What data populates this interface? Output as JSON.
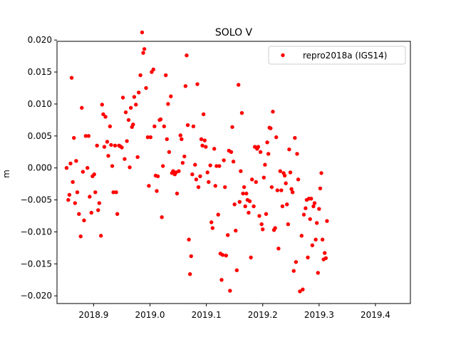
{
  "chart_data": {
    "type": "scatter",
    "title": "SOLO V",
    "xlabel": "",
    "ylabel": "m",
    "xlim": [
      2018.835,
      2019.462
    ],
    "ylim": [
      -0.0212,
      0.0198
    ],
    "xticks": [
      2018.9,
      2019.0,
      2019.1,
      2019.2,
      2019.3,
      2019.4
    ],
    "xtick_labels": [
      "2018.9",
      "2019.0",
      "2019.1",
      "2019.2",
      "2019.3",
      "2019.4"
    ],
    "yticks": [
      -0.02,
      -0.015,
      -0.01,
      -0.005,
      0.0,
      0.005,
      0.01,
      0.015,
      0.02
    ],
    "ytick_labels": [
      "−0.020",
      "−0.015",
      "−0.010",
      "−0.005",
      "0.000",
      "0.005",
      "0.010",
      "0.015",
      "0.020"
    ],
    "grid": false,
    "legend": {
      "position": "top-right"
    },
    "colors": {
      "marker": "#ff0000"
    },
    "series": [
      {
        "name": "repro2018a (IGS14)",
        "points": [
          [
            2018.852,
            0.0
          ],
          [
            2018.855,
            -0.005
          ],
          [
            2018.857,
            -0.0042
          ],
          [
            2018.859,
            0.0007
          ],
          [
            2018.861,
            0.0141
          ],
          [
            2018.863,
            -0.0022
          ],
          [
            2018.865,
            0.0047
          ],
          [
            2018.867,
            -0.0055
          ],
          [
            2018.869,
            0.0011
          ],
          [
            2018.871,
            -0.0038
          ],
          [
            2018.874,
            -0.0072
          ],
          [
            2018.877,
            -0.0107
          ],
          [
            2018.879,
            0.0094
          ],
          [
            2018.881,
            -0.0006
          ],
          [
            2018.883,
            -0.0082
          ],
          [
            2018.886,
            0.005
          ],
          [
            2018.889,
            0.0
          ],
          [
            2018.891,
            0.005
          ],
          [
            2018.893,
            -0.0045
          ],
          [
            2018.896,
            -0.007
          ],
          [
            2018.898,
            -0.0013
          ],
          [
            2018.901,
            -0.001
          ],
          [
            2018.903,
            -0.0038
          ],
          [
            2018.906,
            0.0035
          ],
          [
            2018.908,
            -0.0066
          ],
          [
            2018.91,
            -0.0055
          ],
          [
            2018.913,
            -0.0106
          ],
          [
            2018.915,
            0.0099
          ],
          [
            2018.917,
            0.0084
          ],
          [
            2018.919,
            0.0033
          ],
          [
            2018.921,
            0.008
          ],
          [
            2018.924,
            0.0041
          ],
          [
            2018.926,
            0.0019
          ],
          [
            2018.929,
            0.0065
          ],
          [
            2018.931,
            0.0036
          ],
          [
            2018.933,
            0.0003
          ],
          [
            2018.935,
            -0.0038
          ],
          [
            2018.938,
            0.0035
          ],
          [
            2018.94,
            -0.0038
          ],
          [
            2018.942,
            -0.0072
          ],
          [
            2018.945,
            0.0035
          ],
          [
            2018.947,
            0.0034
          ],
          [
            2018.95,
            0.0032
          ],
          [
            2018.952,
            0.011
          ],
          [
            2018.955,
            0.0014
          ],
          [
            2018.957,
            0.0087
          ],
          [
            2018.959,
            0.0042
          ],
          [
            2018.962,
            0.0075
          ],
          [
            2018.964,
            0.0001
          ],
          [
            2018.966,
            0.0094
          ],
          [
            2018.968,
            0.0064
          ],
          [
            2018.97,
            0.0068
          ],
          [
            2018.972,
            0.0111
          ],
          [
            2018.975,
            0.0099
          ],
          [
            2018.978,
            0.0017
          ],
          [
            2018.98,
            0.0118
          ],
          [
            2018.983,
            0.0145
          ],
          [
            2018.986,
            0.0212
          ],
          [
            2018.988,
            0.018
          ],
          [
            2018.99,
            0.0186
          ],
          [
            2018.993,
            0.0125
          ],
          [
            2018.996,
            0.0048
          ],
          [
            2018.998,
            -0.0028
          ],
          [
            2019.001,
            0.0048
          ],
          [
            2019.003,
            0.015
          ],
          [
            2019.006,
            0.0154
          ],
          [
            2019.008,
            0.0065
          ],
          [
            2019.01,
            -0.0012
          ],
          [
            2019.012,
            -0.0036
          ],
          [
            2019.014,
            -0.0013
          ],
          [
            2019.017,
            0.0075
          ],
          [
            2019.019,
            0.0076
          ],
          [
            2019.021,
            -0.0077
          ],
          [
            2019.023,
            0.0003
          ],
          [
            2019.025,
            0.0065
          ],
          [
            2019.028,
            0.0145
          ],
          [
            2019.03,
            0.0045
          ],
          [
            2019.032,
            0.01
          ],
          [
            2019.034,
            0.0025
          ],
          [
            2019.037,
            0.0112
          ],
          [
            2019.039,
            -0.0008
          ],
          [
            2019.041,
            -0.0005
          ],
          [
            2019.044,
            -0.001
          ],
          [
            2019.046,
            -0.0007
          ],
          [
            2019.048,
            -0.004
          ],
          [
            2019.051,
            -0.0005
          ],
          [
            2019.054,
            0.0051
          ],
          [
            2019.056,
            0.0045
          ],
          [
            2019.058,
            0.0008
          ],
          [
            2019.061,
            0.0018
          ],
          [
            2019.063,
            0.0128
          ],
          [
            2019.065,
            0.0176
          ],
          [
            2019.067,
            0.0067
          ],
          [
            2019.069,
            -0.0112
          ],
          [
            2019.071,
            -0.0166
          ],
          [
            2019.073,
            -0.0138
          ],
          [
            2019.075,
            -0.001
          ],
          [
            2019.077,
            0.0065
          ],
          [
            2019.08,
            0.0005
          ],
          [
            2019.082,
            -0.0018
          ],
          [
            2019.084,
            0.0131
          ],
          [
            2019.086,
            -0.003
          ],
          [
            2019.089,
            -0.0013
          ],
          [
            2019.091,
            0.0045
          ],
          [
            2019.093,
            0.0035
          ],
          [
            2019.095,
            0.0084
          ],
          [
            2019.097,
            0.0043
          ],
          [
            2019.099,
            0.0033
          ],
          [
            2019.102,
            -0.0007
          ],
          [
            2019.104,
            -0.0022
          ],
          [
            2019.107,
            0.0004
          ],
          [
            2019.109,
            -0.0085
          ],
          [
            2019.111,
            -0.0094
          ],
          [
            2019.114,
            0.003
          ],
          [
            2019.116,
            -0.0028
          ],
          [
            2019.118,
            0.0003
          ],
          [
            2019.121,
            -0.0073
          ],
          [
            2019.123,
            0.0003
          ],
          [
            2019.125,
            -0.0134
          ],
          [
            2019.127,
            -0.0175
          ],
          [
            2019.129,
            -0.0136
          ],
          [
            2019.131,
            0.0012
          ],
          [
            2019.133,
            -0.003
          ],
          [
            2019.135,
            -0.0137
          ],
          [
            2019.138,
            -0.0105
          ],
          [
            2019.14,
            0.0027
          ],
          [
            2019.142,
            -0.0192
          ],
          [
            2019.144,
            0.0025
          ],
          [
            2019.146,
            0.0064
          ],
          [
            2019.148,
            0.001
          ],
          [
            2019.15,
            -0.0057
          ],
          [
            2019.152,
            -0.0098
          ],
          [
            2019.154,
            -0.016
          ],
          [
            2019.157,
            0.013
          ],
          [
            2019.159,
            -0.0053
          ],
          [
            2019.161,
            -0.0005
          ],
          [
            2019.163,
            0.0086
          ],
          [
            2019.165,
            -0.004
          ],
          [
            2019.167,
            -0.003
          ],
          [
            2019.169,
            -0.006
          ],
          [
            2019.171,
            -0.004
          ],
          [
            2019.173,
            -0.005
          ],
          [
            2019.175,
            -0.007
          ],
          [
            2019.177,
            -0.0052
          ],
          [
            2019.179,
            -0.014
          ],
          [
            2019.181,
            -0.0018
          ],
          [
            2019.184,
            -0.006
          ],
          [
            2019.186,
            0.0033
          ],
          [
            2019.188,
            -0.0022
          ],
          [
            2019.19,
            0.003
          ],
          [
            2019.192,
            0.0033
          ],
          [
            2019.194,
            -0.0075
          ],
          [
            2019.196,
            0.0025
          ],
          [
            2019.198,
            -0.0088
          ],
          [
            2019.2,
            -0.0096
          ],
          [
            2019.202,
            -0.0015
          ],
          [
            2019.204,
            0.0005
          ],
          [
            2019.206,
            -0.0072
          ],
          [
            2019.208,
            0.004
          ],
          [
            2019.21,
            0.0022
          ],
          [
            2019.212,
            0.0063
          ],
          [
            2019.214,
            0.0062
          ],
          [
            2019.216,
            -0.003
          ],
          [
            2019.218,
            0.0088
          ],
          [
            2019.22,
            -0.0097
          ],
          [
            2019.222,
            -0.0094
          ],
          [
            2019.224,
            0.0048
          ],
          [
            2019.226,
            -0.0035
          ],
          [
            2019.228,
            -0.0126
          ],
          [
            2019.231,
            -0.0005
          ],
          [
            2019.233,
            -0.0035
          ],
          [
            2019.235,
            -0.006
          ],
          [
            2019.237,
            -0.0008
          ],
          [
            2019.239,
            -0.0012
          ],
          [
            2019.241,
            -0.0024
          ],
          [
            2019.243,
            -0.0057
          ],
          [
            2019.245,
            -0.0088
          ],
          [
            2019.247,
            0.0029
          ],
          [
            2019.249,
            -0.0007
          ],
          [
            2019.251,
            -0.0033
          ],
          [
            2019.253,
            -0.0038
          ],
          [
            2019.255,
            -0.0161
          ],
          [
            2019.257,
            0.0047
          ],
          [
            2019.259,
            -0.0147
          ],
          [
            2019.261,
            0.0022
          ],
          [
            2019.263,
            -0.0018
          ],
          [
            2019.266,
            -0.0193
          ],
          [
            2019.269,
            -0.0106
          ],
          [
            2019.271,
            -0.019
          ],
          [
            2019.273,
            -0.0073
          ],
          [
            2019.276,
            -0.0063
          ],
          [
            2019.278,
            -0.005
          ],
          [
            2019.28,
            -0.014
          ],
          [
            2019.282,
            -0.0048
          ],
          [
            2019.284,
            -0.008
          ],
          [
            2019.286,
            -0.0048
          ],
          [
            2019.288,
            -0.0121
          ],
          [
            2019.29,
            -0.006
          ],
          [
            2019.292,
            -0.0055
          ],
          [
            2019.294,
            -0.0112
          ],
          [
            2019.296,
            -0.0086
          ],
          [
            2019.298,
            -0.0164
          ],
          [
            2019.3,
            -0.0064
          ],
          [
            2019.302,
            -0.0032
          ],
          [
            2019.304,
            -0.0008
          ],
          [
            2019.306,
            -0.0112
          ],
          [
            2019.308,
            -0.0143
          ],
          [
            2019.31,
            -0.0133
          ],
          [
            2019.312,
            -0.0141
          ],
          [
            2019.314,
            -0.0083
          ]
        ]
      }
    ]
  }
}
